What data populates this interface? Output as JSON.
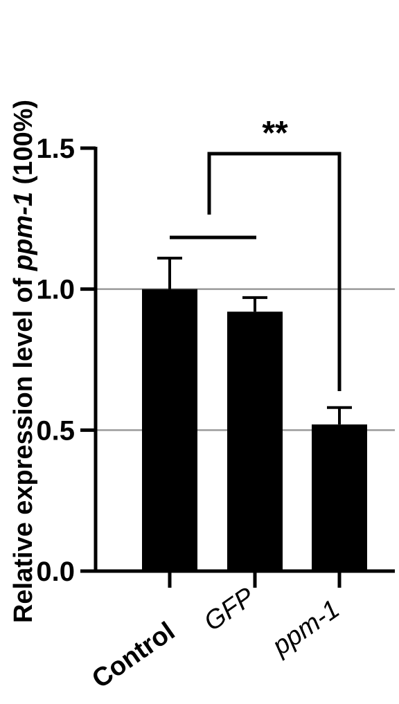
{
  "chart_data": {
    "type": "bar",
    "categories": [
      "Control",
      "GFP",
      "ppm-1"
    ],
    "category_styles": [
      "bold",
      "italic",
      "italic"
    ],
    "values": [
      1.0,
      0.92,
      0.52
    ],
    "errors": [
      0.11,
      0.05,
      0.06
    ],
    "ylabel_parts": [
      "Relative expression level of ",
      "ppm-1",
      " (100%)"
    ],
    "ylim": [
      0,
      1.5
    ],
    "yticks": [
      0.0,
      0.5,
      1.0,
      1.5
    ],
    "ytick_labels": [
      "0.0",
      "0.5",
      "1.0",
      "1.5"
    ],
    "reference_lines": [
      0.5,
      1.0
    ],
    "significance": {
      "label": "**",
      "groups": [
        "Control+GFP",
        "ppm-1"
      ]
    },
    "colors": {
      "bar": "#000000",
      "refline": "#9a9a9a"
    }
  }
}
